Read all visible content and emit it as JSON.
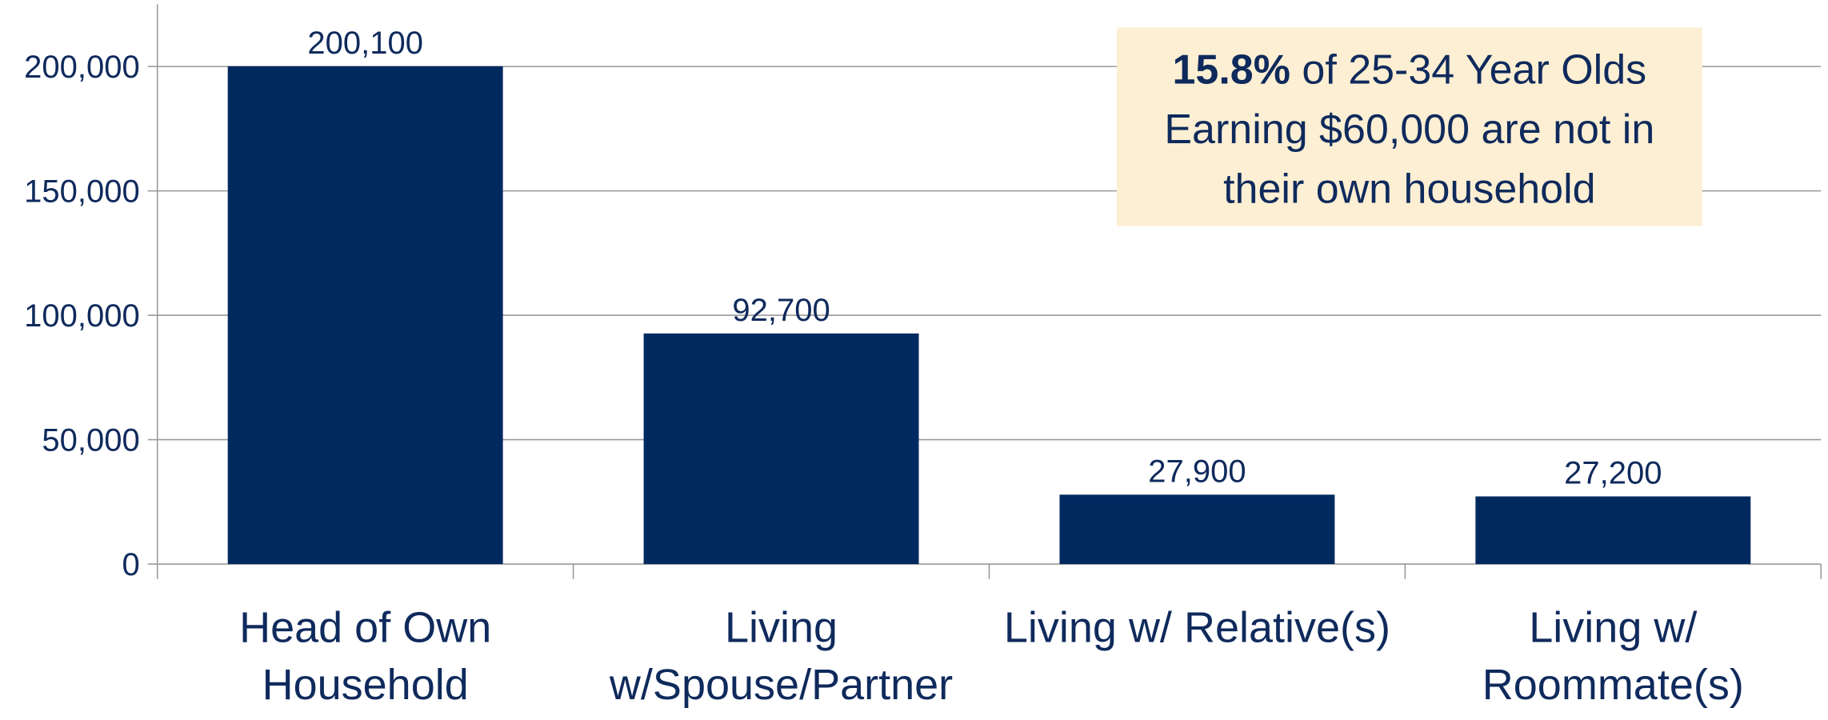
{
  "chart_data": {
    "type": "bar",
    "categories": [
      "Head of Own\nHousehold",
      "Living\nw/Spouse/Partner",
      "Living w/ Relative(s)",
      "Living w/\nRoommate(s)"
    ],
    "values": [
      200100,
      92700,
      27900,
      27200
    ],
    "value_labels": [
      "200,100",
      "92,700",
      "27,900",
      "27,200"
    ],
    "color": "#002960",
    "ylim": [
      0,
      225000
    ],
    "yticks": [
      0,
      {
        "value": 50000,
        "label": "50,000"
      },
      {
        "value": 100000,
        "label": "100,000"
      },
      {
        "value": 150000,
        "label": "150,000"
      },
      {
        "value": 200000,
        "label": "200,000"
      }
    ],
    "grid": true,
    "annotation": {
      "highlight": "15.8%",
      "text": "of 25-34 Year Olds\nEarning $60,000 are not in\ntheir own household"
    }
  }
}
